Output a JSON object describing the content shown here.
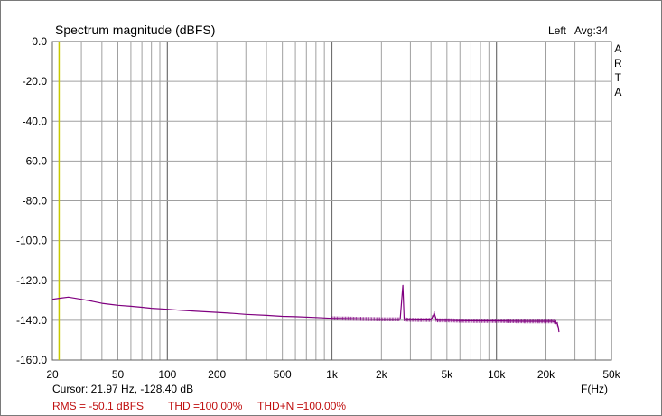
{
  "window": {
    "title": "Spectrum magnitude (dBFS)",
    "channel": "Left",
    "averages": "Avg:34",
    "logo_letters": [
      "A",
      "R",
      "T",
      "A"
    ]
  },
  "footer": {
    "cursor_text": "Cursor: 21.97 Hz, -128.40 dB",
    "x_unit": "F(Hz)",
    "rms": "RMS =  -50.1 dBFS",
    "thd": "THD =100.00%",
    "thdn": "THD+N =100.00%"
  },
  "colors": {
    "trace": "#800080",
    "cursor_line": "#c8c800",
    "grid": "#a0a0a0",
    "grid_major": "#707070",
    "stats_text": "#c01010"
  },
  "chart_data": {
    "type": "line",
    "title": "Spectrum magnitude (dBFS)",
    "xlabel": "F(Hz)",
    "ylabel": "",
    "x_scale": "log",
    "xlim": [
      20,
      50000
    ],
    "ylim": [
      -160,
      0
    ],
    "grid": true,
    "x_ticks": [
      20,
      50,
      100,
      200,
      500,
      1000,
      2000,
      5000,
      10000,
      20000,
      50000
    ],
    "x_tick_labels": [
      "20",
      "50",
      "100",
      "200",
      "500",
      "1k",
      "2k",
      "5k",
      "10k",
      "20k",
      "50k"
    ],
    "y_ticks": [
      0,
      -20,
      -40,
      -60,
      -80,
      -100,
      -120,
      -140,
      -160
    ],
    "y_tick_labels": [
      "0.0",
      "-20.0",
      "-40.0",
      "-60.0",
      "-80.0",
      "-100.0",
      "-120.0",
      "-140.0",
      "-160.0"
    ],
    "cursor": {
      "x": 21.97,
      "y": -128.4
    },
    "series": [
      {
        "x": [
          20,
          22,
          25,
          30,
          35,
          40,
          50,
          60,
          70,
          80,
          100,
          120,
          150,
          200,
          250,
          300,
          400,
          500,
          600,
          800,
          1000,
          1500,
          2000,
          2600,
          2700,
          2750,
          2800,
          2900,
          3500,
          4000,
          4200,
          4300,
          4400,
          5000,
          6000,
          8000,
          10000,
          12000,
          15000,
          18000,
          20000,
          22000,
          23000,
          23500,
          23800,
          24000
        ],
        "y": [
          -129.5,
          -129,
          -128.4,
          -129.5,
          -130.5,
          -131.5,
          -132.5,
          -133,
          -133.5,
          -134,
          -134.5,
          -135,
          -135.5,
          -136,
          -136.5,
          -137,
          -137.5,
          -138,
          -138.2,
          -138.6,
          -139,
          -139.3,
          -139.5,
          -139.5,
          -122.5,
          -139.5,
          -139.6,
          -139.7,
          -139.8,
          -139.8,
          -136.5,
          -139.8,
          -140,
          -140,
          -140.2,
          -140.3,
          -140.3,
          -140.4,
          -140.5,
          -140.5,
          -140.5,
          -140.5,
          -141,
          -142,
          -144,
          -146
        ]
      }
    ]
  }
}
